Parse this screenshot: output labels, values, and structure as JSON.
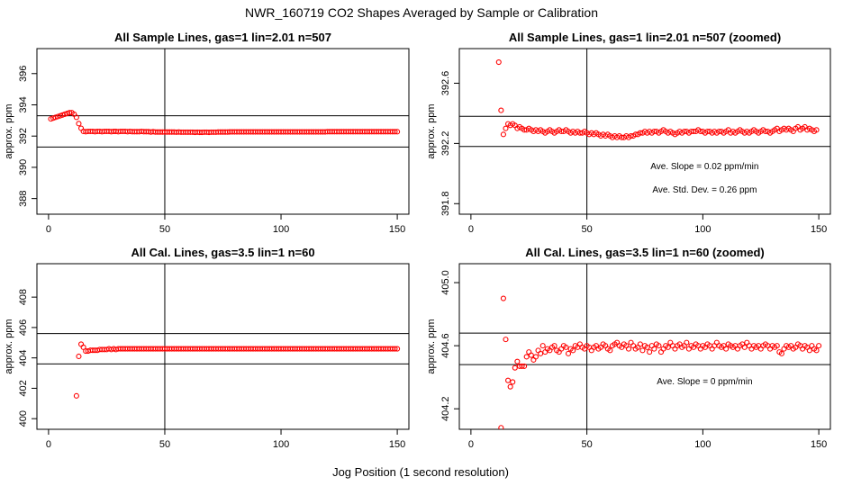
{
  "figure": {
    "main_title": "NWR_160719  CO2 Shapes Averaged by Sample or Calibration",
    "bottom_xlabel": "Jog Position (1 second resolution)",
    "point_color": "#ff0000"
  },
  "chart_data": [
    {
      "id": "p1",
      "type": "scatter",
      "title": "All Sample Lines, gas=1 lin=2.01 n=507",
      "xlabel": "",
      "ylabel": "approx. ppm",
      "xlim": [
        -5,
        155
      ],
      "ylim": [
        387,
        397.6
      ],
      "xticks": [
        0,
        50,
        100,
        150
      ],
      "yticks": [
        388,
        390,
        392,
        394,
        396
      ],
      "hlines": [
        393.3,
        391.3
      ],
      "vline": 50,
      "annotations": [],
      "series": [
        {
          "x_start": 1,
          "x_step": 1,
          "values": [
            393.1,
            393.15,
            393.2,
            393.25,
            393.3,
            393.35,
            393.4,
            393.45,
            393.5,
            393.5,
            393.4,
            393.2,
            392.8,
            392.5,
            392.3,
            392.28,
            392.3,
            392.3,
            392.3,
            392.28,
            392.3,
            392.3,
            392.28,
            392.3,
            392.3,
            392.3,
            392.28,
            392.3,
            392.3,
            392.28,
            392.3,
            392.3,
            392.3,
            392.28,
            392.3,
            392.28,
            392.28,
            392.28,
            392.28,
            392.3,
            392.28,
            392.28,
            392.28,
            392.26,
            392.28,
            392.26,
            392.26,
            392.26,
            392.26,
            392.26,
            392.26,
            392.26,
            392.26,
            392.26,
            392.25,
            392.26,
            392.25,
            392.25,
            392.25,
            392.25,
            392.25,
            392.25,
            392.24,
            392.25,
            392.24,
            392.24,
            392.25,
            392.25,
            392.24,
            392.25,
            392.25,
            392.25,
            392.26,
            392.26,
            392.26,
            392.26,
            392.26,
            392.27,
            392.27,
            392.27,
            392.27,
            392.27,
            392.27,
            392.27,
            392.27,
            392.27,
            392.27,
            392.27,
            392.27,
            392.27,
            392.27,
            392.27,
            392.27,
            392.27,
            392.27,
            392.27,
            392.27,
            392.27,
            392.27,
            392.27,
            392.27,
            392.27,
            392.27,
            392.27,
            392.27,
            392.27,
            392.27,
            392.27,
            392.27,
            392.27,
            392.27,
            392.27,
            392.27,
            392.27,
            392.27,
            392.27,
            392.27,
            392.27,
            392.27,
            392.28,
            392.28,
            392.28,
            392.28,
            392.28,
            392.28,
            392.28,
            392.28,
            392.28,
            392.28,
            392.28,
            392.28,
            392.28,
            392.28,
            392.28,
            392.28,
            392.28,
            392.28,
            392.28,
            392.28,
            392.28,
            392.28,
            392.28,
            392.28,
            392.28,
            392.28,
            392.28,
            392.28,
            392.28,
            392.28,
            392.28
          ]
        }
      ]
    },
    {
      "id": "p2",
      "type": "scatter",
      "title": "All Sample Lines, gas=1 lin=2.01 n=507 (zoomed)",
      "xlabel": "",
      "ylabel": "approx. ppm",
      "xlim": [
        -5,
        155
      ],
      "ylim": [
        391.73,
        392.83
      ],
      "xticks": [
        0,
        50,
        100,
        150
      ],
      "yticks": [
        391.8,
        392.2,
        392.6
      ],
      "hlines": [
        392.38,
        392.18
      ],
      "vline": 50,
      "annotations": [
        "Ave. Slope =  0.02  ppm/min",
        "Ave. Std. Dev. =  0.26  ppm"
      ],
      "series": [
        {
          "x_start": 12,
          "x_step": 1,
          "values": [
            392.74,
            392.42,
            392.26,
            392.3,
            392.33,
            392.32,
            392.33,
            392.32,
            392.3,
            392.31,
            392.3,
            392.29,
            392.29,
            392.3,
            392.29,
            392.28,
            392.29,
            392.28,
            392.29,
            392.28,
            392.27,
            392.28,
            392.29,
            392.28,
            392.27,
            392.28,
            392.29,
            392.28,
            392.28,
            392.29,
            392.28,
            392.27,
            392.28,
            392.27,
            392.28,
            392.27,
            392.27,
            392.28,
            392.27,
            392.26,
            392.27,
            392.26,
            392.27,
            392.26,
            392.25,
            392.26,
            392.25,
            392.26,
            392.25,
            392.24,
            392.25,
            392.24,
            392.25,
            392.24,
            392.24,
            392.25,
            392.24,
            392.25,
            392.25,
            392.26,
            392.26,
            392.27,
            392.27,
            392.28,
            392.27,
            392.28,
            392.27,
            392.28,
            392.28,
            392.27,
            392.28,
            392.29,
            392.28,
            392.27,
            392.28,
            392.27,
            392.26,
            392.27,
            392.28,
            392.27,
            392.28,
            392.28,
            392.27,
            392.28,
            392.28,
            392.28,
            392.29,
            392.28,
            392.28,
            392.27,
            392.28,
            392.28,
            392.27,
            392.28,
            392.27,
            392.28,
            392.28,
            392.27,
            392.28,
            392.29,
            392.27,
            392.28,
            392.27,
            392.28,
            392.29,
            392.28,
            392.27,
            392.28,
            392.27,
            392.28,
            392.29,
            392.28,
            392.27,
            392.28,
            392.29,
            392.28,
            392.28,
            392.27,
            392.28,
            392.29,
            392.3,
            392.28,
            392.29,
            392.3,
            392.29,
            392.3,
            392.29,
            392.28,
            392.3,
            392.31,
            392.29,
            392.3,
            392.31,
            392.29,
            392.3,
            392.29,
            392.28,
            392.29
          ]
        }
      ]
    },
    {
      "id": "p3",
      "type": "scatter",
      "title": "All Cal. Lines, gas=3.5 lin=1 n=60",
      "xlabel": "",
      "ylabel": "approx. ppm",
      "xlim": [
        -5,
        155
      ],
      "ylim": [
        399.3,
        410.2
      ],
      "xticks": [
        0,
        50,
        100,
        150
      ],
      "yticks": [
        400,
        402,
        404,
        406,
        408
      ],
      "hlines": [
        405.6,
        403.6
      ],
      "vline": 50,
      "annotations": [],
      "series": [
        {
          "x_start": 12,
          "x_step": 1,
          "values": [
            401.5,
            404.1,
            404.9,
            404.7,
            404.45,
            404.45,
            404.5,
            404.5,
            404.5,
            404.5,
            404.55,
            404.55,
            404.55,
            404.55,
            404.6,
            404.55,
            404.6,
            404.55,
            404.6,
            404.6,
            404.6,
            404.6,
            404.6,
            404.6,
            404.6,
            404.6,
            404.6,
            404.6,
            404.6,
            404.6,
            404.6,
            404.6,
            404.6,
            404.6,
            404.6,
            404.6,
            404.6,
            404.6,
            404.6,
            404.6,
            404.6,
            404.6,
            404.6,
            404.6,
            404.6,
            404.6,
            404.6,
            404.6,
            404.6,
            404.6,
            404.6,
            404.6,
            404.6,
            404.6,
            404.6,
            404.6,
            404.6,
            404.6,
            404.6,
            404.6,
            404.6,
            404.6,
            404.6,
            404.6,
            404.6,
            404.6,
            404.6,
            404.6,
            404.6,
            404.6,
            404.6,
            404.6,
            404.6,
            404.6,
            404.6,
            404.6,
            404.6,
            404.6,
            404.6,
            404.6,
            404.6,
            404.6,
            404.6,
            404.6,
            404.6,
            404.6,
            404.6,
            404.6,
            404.6,
            404.6,
            404.6,
            404.6,
            404.6,
            404.6,
            404.6,
            404.6,
            404.6,
            404.6,
            404.6,
            404.6,
            404.6,
            404.6,
            404.6,
            404.6,
            404.6,
            404.6,
            404.6,
            404.6,
            404.6,
            404.6,
            404.6,
            404.6,
            404.6,
            404.6,
            404.6,
            404.6,
            404.6,
            404.6,
            404.6,
            404.6,
            404.6,
            404.6,
            404.6,
            404.6,
            404.6,
            404.6,
            404.6,
            404.6,
            404.6,
            404.6,
            404.6,
            404.6,
            404.6,
            404.6,
            404.6,
            404.6,
            404.6,
            404.6,
            404.6
          ]
        }
      ]
    },
    {
      "id": "p4",
      "type": "scatter",
      "title": "All Cal. Lines, gas=3.5 lin=1 n=60 (zoomed)",
      "xlabel": "",
      "ylabel": "approx. ppm",
      "xlim": [
        -5,
        155
      ],
      "ylim": [
        404.07,
        405.12
      ],
      "xticks": [
        0,
        50,
        100,
        150
      ],
      "yticks": [
        404.2,
        404.6,
        405.0
      ],
      "hlines": [
        404.68,
        404.48
      ],
      "vline": 50,
      "annotations": [
        "Ave. Slope =  0  ppm/min"
      ],
      "series": [
        {
          "x_start": 13,
          "x_step": 1,
          "values": [
            404.08,
            404.9,
            404.64,
            404.38,
            404.34,
            404.37,
            404.46,
            404.5,
            404.47,
            404.47,
            404.47,
            404.53,
            404.56,
            404.54,
            404.51,
            404.53,
            404.57,
            404.55,
            404.6,
            404.56,
            404.58,
            404.57,
            404.59,
            404.6,
            404.57,
            404.56,
            404.58,
            404.6,
            404.59,
            404.55,
            404.58,
            404.57,
            404.6,
            404.59,
            404.61,
            404.59,
            404.58,
            404.6,
            404.59,
            404.57,
            404.59,
            404.6,
            404.58,
            404.59,
            404.61,
            404.6,
            404.58,
            404.57,
            404.6,
            404.61,
            404.62,
            404.6,
            404.59,
            404.61,
            404.6,
            404.58,
            404.62,
            404.6,
            404.58,
            404.59,
            404.61,
            404.57,
            404.6,
            404.59,
            404.56,
            404.6,
            404.58,
            404.61,
            404.6,
            404.56,
            404.58,
            404.6,
            404.59,
            404.62,
            404.6,
            404.58,
            404.6,
            404.61,
            404.59,
            404.6,
            404.62,
            404.58,
            404.6,
            404.59,
            404.61,
            404.6,
            404.58,
            404.6,
            404.59,
            404.61,
            404.6,
            404.58,
            404.6,
            404.62,
            404.6,
            404.59,
            404.6,
            404.58,
            404.61,
            404.6,
            404.59,
            404.6,
            404.58,
            404.6,
            404.61,
            404.59,
            404.62,
            404.6,
            404.58,
            404.6,
            404.59,
            404.6,
            404.58,
            404.6,
            404.61,
            404.6,
            404.58,
            404.6,
            404.59,
            404.6,
            404.56,
            404.55,
            404.58,
            404.6,
            404.59,
            404.6,
            404.58,
            404.59,
            404.61,
            404.6,
            404.58,
            404.6,
            404.59,
            404.57,
            404.6,
            404.58,
            404.57,
            404.6
          ]
        }
      ]
    }
  ]
}
